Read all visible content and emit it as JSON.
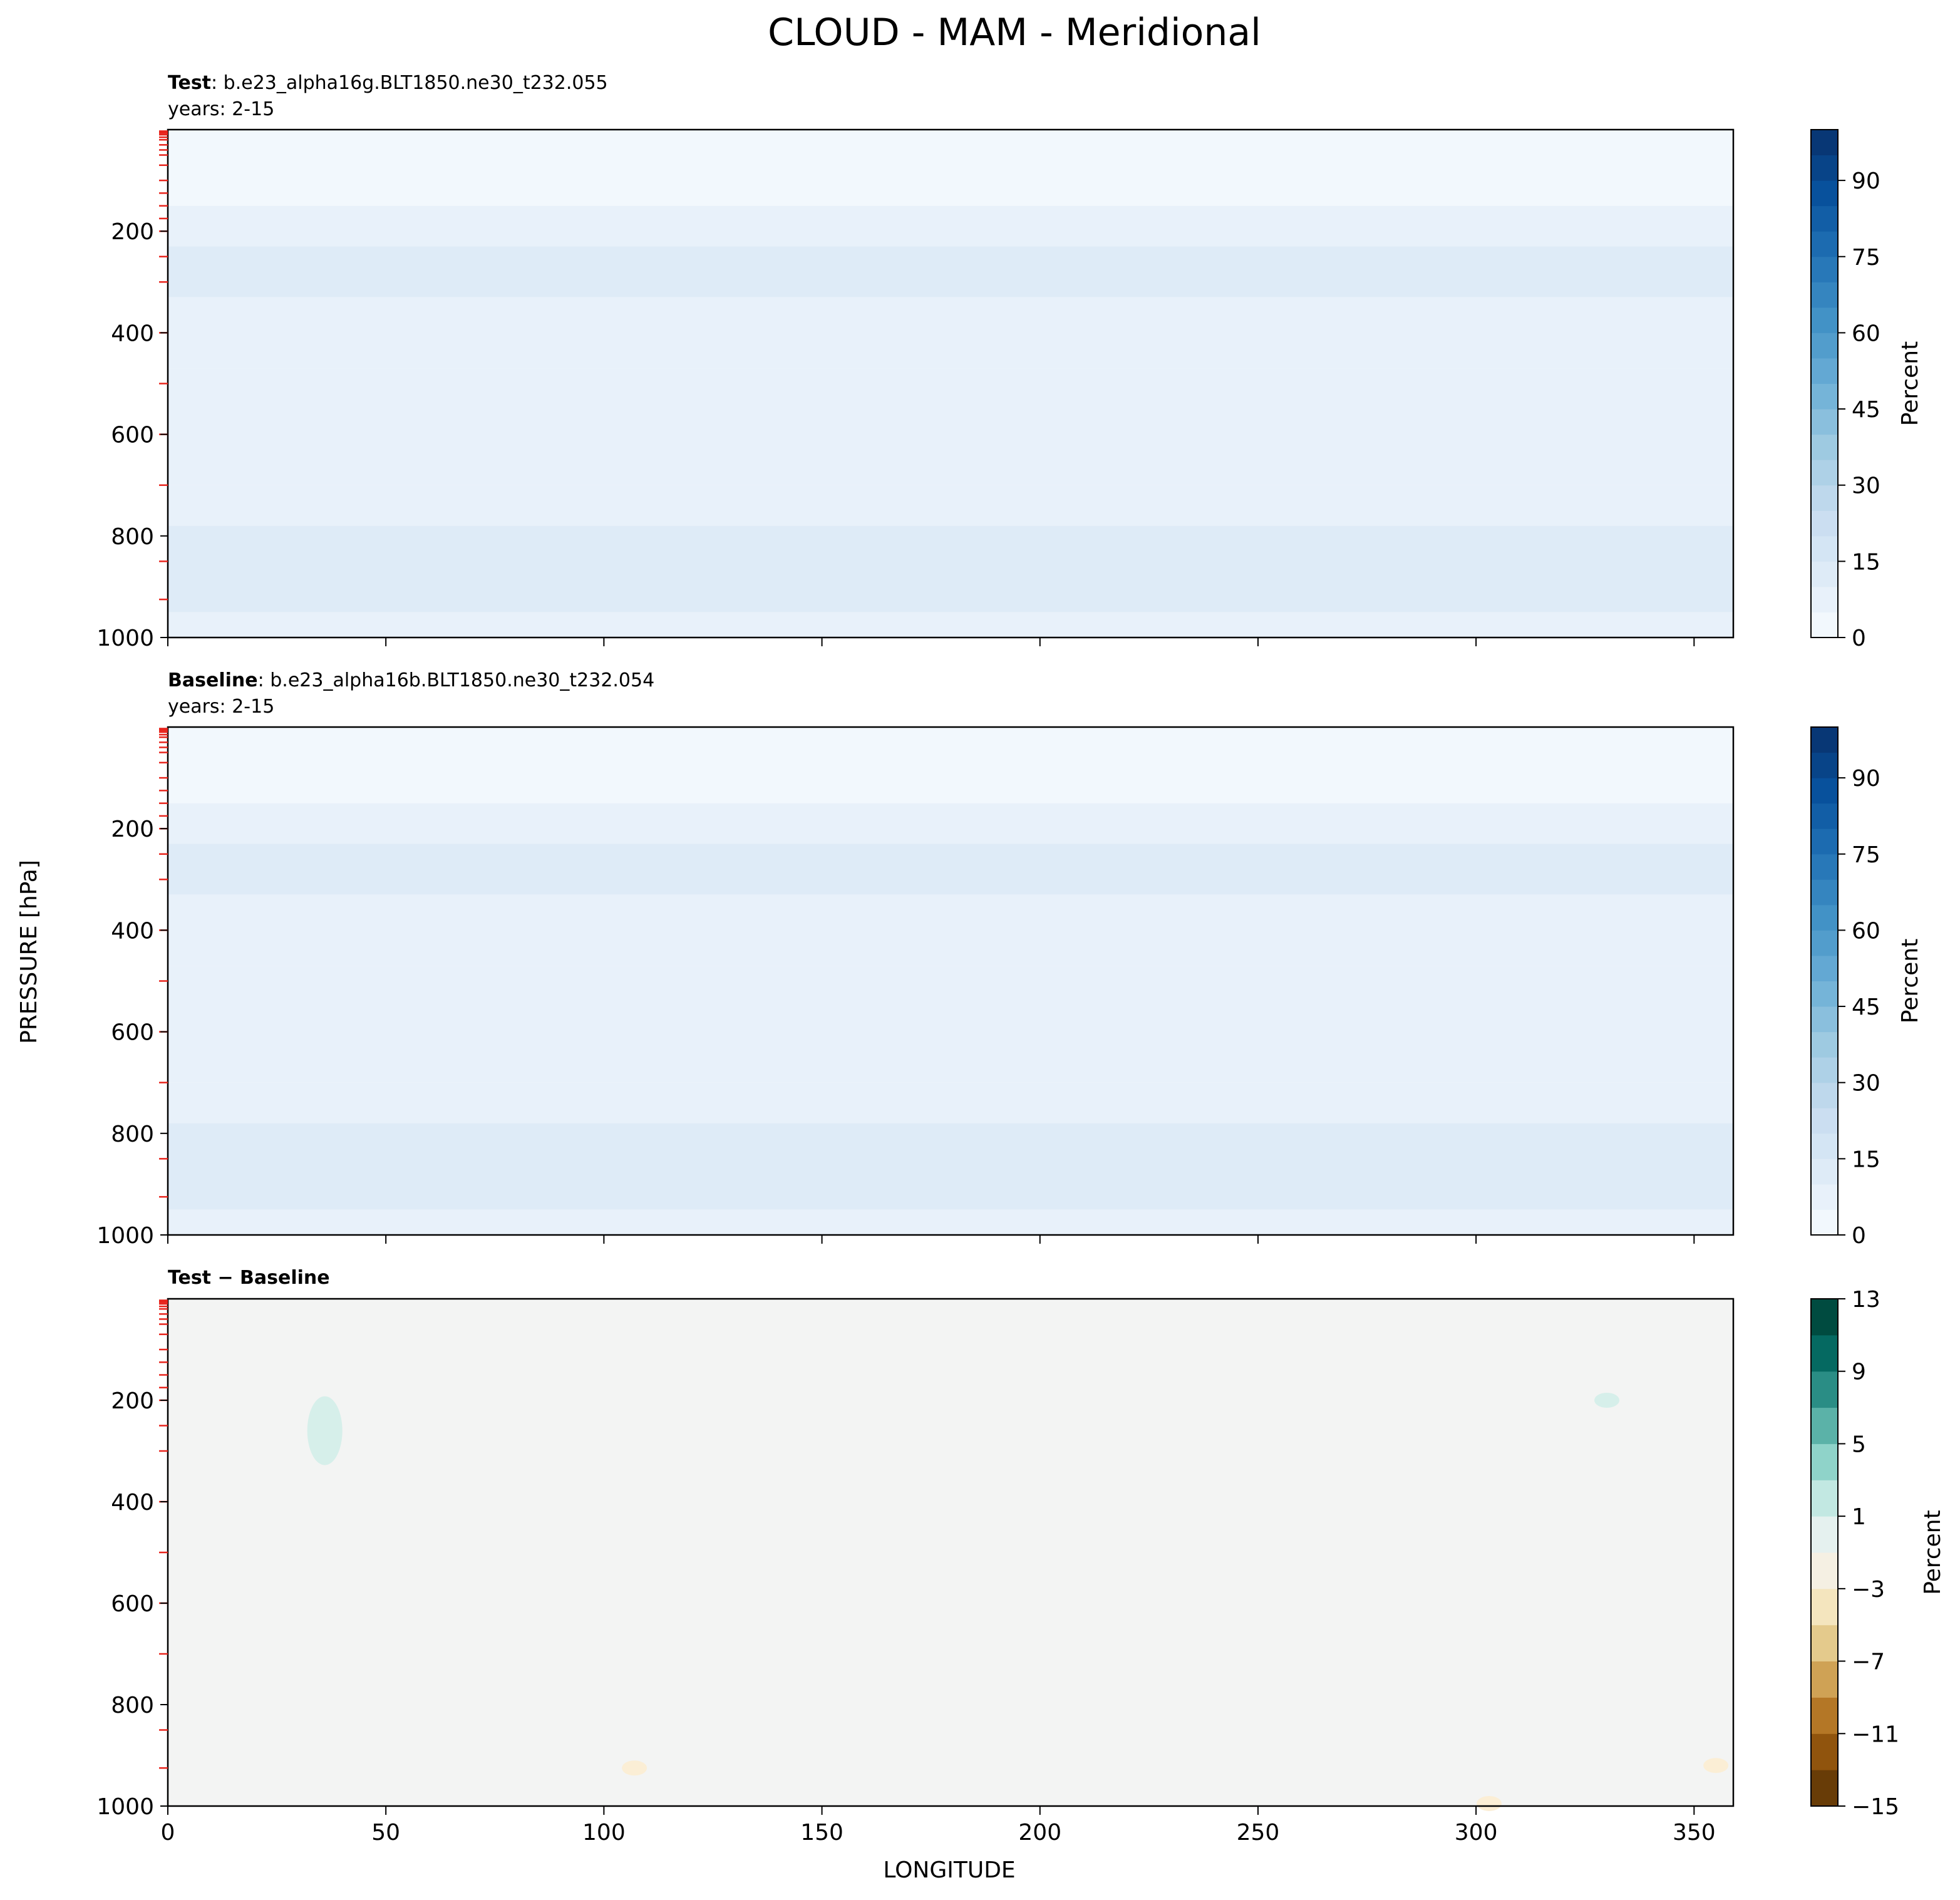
{
  "figure": {
    "suptitle": "CLOUD - MAM - Meridional",
    "shared_ylabel": "PRESSURE [hPa]",
    "shared_xlabel": "LONGITUDE"
  },
  "chart_data": [
    {
      "type": "heatmap",
      "title_bold": "Test",
      "title_rest": ": b.e23_alpha16g.BLT1850.ne30_t232.055",
      "subtitle": "years: 2-15",
      "xlim": [
        0,
        359
      ],
      "ylim": [
        1000,
        0
      ],
      "x_ticks": [
        0,
        50,
        100,
        150,
        200,
        250,
        300,
        350
      ],
      "x_ticklabels_shown": false,
      "y_ticks": [
        "200",
        "400",
        "600",
        "800",
        "1000"
      ],
      "colorbar": {
        "label": "Percent",
        "levels": [
          0,
          5,
          10,
          15,
          20,
          25,
          30,
          35,
          40,
          45,
          50,
          55,
          60,
          65,
          70,
          75,
          80,
          85,
          90,
          95,
          100
        ],
        "ticks": [
          "0",
          "15",
          "30",
          "45",
          "60",
          "75",
          "90"
        ],
        "colormap": "Blues"
      },
      "fields": [
        {
          "range_hPa": [
            0,
            150
          ],
          "value": 2
        },
        {
          "range_hPa": [
            150,
            230
          ],
          "value": 8
        },
        {
          "range_hPa": [
            230,
            330
          ],
          "value": 13
        },
        {
          "range_hPa": [
            330,
            470
          ],
          "value": 9
        },
        {
          "range_hPa": [
            470,
            700
          ],
          "value": 6
        },
        {
          "range_hPa": [
            700,
            780
          ],
          "value": 8
        },
        {
          "range_hPa": [
            780,
            950
          ],
          "value": 12
        },
        {
          "range_hPa": [
            950,
            1000
          ],
          "value": 7
        }
      ]
    },
    {
      "type": "heatmap",
      "title_bold": "Baseline",
      "title_rest": ": b.e23_alpha16b.BLT1850.ne30_t232.054",
      "subtitle": "years: 2-15",
      "xlim": [
        0,
        359
      ],
      "ylim": [
        1000,
        0
      ],
      "x_ticks": [
        0,
        50,
        100,
        150,
        200,
        250,
        300,
        350
      ],
      "x_ticklabels_shown": false,
      "y_ticks": [
        "200",
        "400",
        "600",
        "800",
        "1000"
      ],
      "colorbar": {
        "label": "Percent",
        "levels": [
          0,
          5,
          10,
          15,
          20,
          25,
          30,
          35,
          40,
          45,
          50,
          55,
          60,
          65,
          70,
          75,
          80,
          85,
          90,
          95,
          100
        ],
        "ticks": [
          "0",
          "15",
          "30",
          "45",
          "60",
          "75",
          "90"
        ],
        "colormap": "Blues"
      },
      "fields": [
        {
          "range_hPa": [
            0,
            150
          ],
          "value": 2
        },
        {
          "range_hPa": [
            150,
            230
          ],
          "value": 8
        },
        {
          "range_hPa": [
            230,
            330
          ],
          "value": 13
        },
        {
          "range_hPa": [
            330,
            470
          ],
          "value": 9
        },
        {
          "range_hPa": [
            470,
            700
          ],
          "value": 6
        },
        {
          "range_hPa": [
            700,
            780
          ],
          "value": 8
        },
        {
          "range_hPa": [
            780,
            950
          ],
          "value": 12
        },
        {
          "range_hPa": [
            950,
            1000
          ],
          "value": 7
        }
      ]
    },
    {
      "type": "heatmap",
      "title": "Test − Baseline",
      "xlim": [
        0,
        359
      ],
      "ylim": [
        1000,
        0
      ],
      "x_ticks": [
        0,
        50,
        100,
        150,
        200,
        250,
        300,
        350
      ],
      "x_ticklabels": [
        "0",
        "50",
        "100",
        "150",
        "200",
        "250",
        "300",
        "350"
      ],
      "y_ticks": [
        "200",
        "400",
        "600",
        "800",
        "1000"
      ],
      "background_value": 0,
      "colorbar": {
        "label": "Percent",
        "levels": [
          -15,
          -13,
          -11,
          -9,
          -7,
          -5,
          -3,
          -1,
          1,
          3,
          5,
          7,
          9,
          11,
          13
        ],
        "ticks": [
          "−15",
          "−11",
          "−7",
          "−3",
          "1",
          "5",
          "9",
          "13"
        ],
        "colormap": "BrBG"
      },
      "features": [
        {
          "lon": 36,
          "pressure_hPa": 260,
          "value": 2
        },
        {
          "lon": 330,
          "pressure_hPa": 200,
          "value": 2
        },
        {
          "lon": 107,
          "pressure_hPa": 925,
          "value": -1.5
        },
        {
          "lon": 355,
          "pressure_hPa": 920,
          "value": -1.5
        },
        {
          "lon": 303,
          "pressure_hPa": 995,
          "value": -1.5
        }
      ]
    }
  ]
}
